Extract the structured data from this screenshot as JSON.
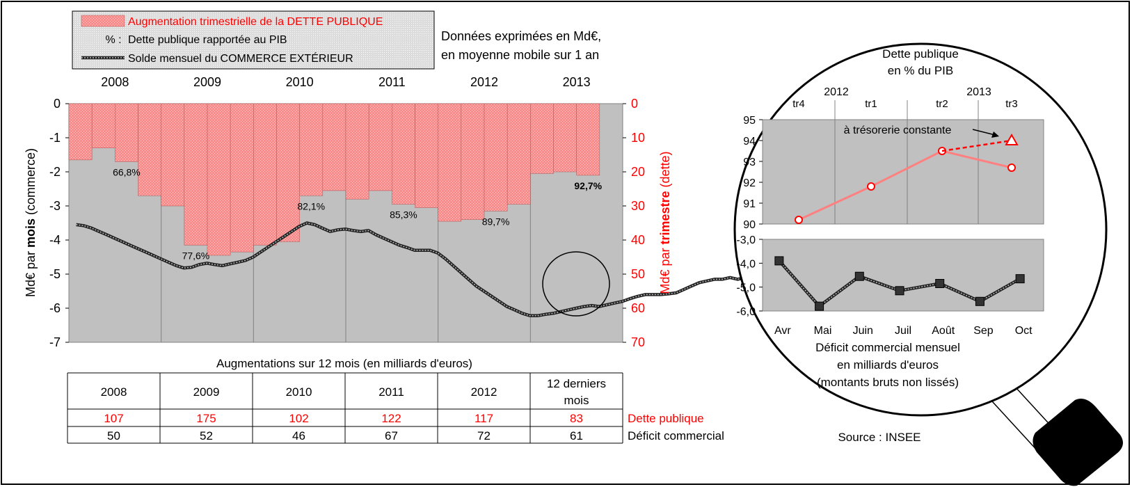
{
  "legend": {
    "items": [
      {
        "label": "Augmentation trimestrielle de la DETTE PUBLIQUE",
        "color": "#ff0000",
        "swatch": "bar"
      },
      {
        "label": "Dette publique rapportée au PIB",
        "color": "#000000",
        "swatch": "%  :"
      },
      {
        "label": "Solde mensuel du COMMERCE EXTÉRIEUR",
        "color": "#000000",
        "swatch": "line"
      }
    ]
  },
  "note": [
    "Données exprimées en Md€,",
    "en moyenne mobile sur 1 an"
  ],
  "source": "Source : INSEE",
  "colors": {
    "plot_bg": "#c0c0c0",
    "bar_fill": "#ff8080",
    "debt_red": "#ff0000",
    "line_dark": "#333333",
    "pink_line": "#ff8080"
  },
  "chart_data": [
    {
      "type": "bar",
      "id": "main",
      "years": [
        "2008",
        "2009",
        "2010",
        "2011",
        "2012",
        "2013"
      ],
      "ylabel_left_parts": [
        "Md€ par ",
        "mois",
        " (commerce)"
      ],
      "ylabel_right_parts": [
        "Md€ par ",
        "trimestre",
        " (dette)"
      ],
      "ylim_left": [
        -7,
        0
      ],
      "ylim_right": [
        0,
        70
      ],
      "left_ticks": [
        "0",
        "-1",
        "-2",
        "-3",
        "-4",
        "-5",
        "-6",
        "-7"
      ],
      "right_ticks": [
        "0",
        "10",
        "20",
        "30",
        "40",
        "50",
        "60",
        "70"
      ],
      "debt_quarterly": [
        16.5,
        13,
        17,
        27,
        30,
        41.5,
        44.5,
        43.5,
        41.5,
        40.5,
        27,
        25.5,
        28,
        25.5,
        29.5,
        30.5,
        34.5,
        34,
        31.5,
        29.5,
        20.5,
        20,
        21
      ],
      "ratio_labels": [
        {
          "q": 2,
          "text": "66,8%",
          "bold": false
        },
        {
          "q": 5,
          "text": "77,6%",
          "bold": false
        },
        {
          "q": 10,
          "text": "82,1%",
          "bold": false
        },
        {
          "q": 14,
          "text": "85,3%",
          "bold": false
        },
        {
          "q": 18,
          "text": "89,7%",
          "bold": false
        },
        {
          "q": 22,
          "text": "92,7%",
          "bold": true
        }
      ],
      "trade_monthly": [
        -3.55,
        -3.58,
        -3.65,
        -3.75,
        -3.85,
        -3.95,
        -4.05,
        -4.15,
        -4.25,
        -4.35,
        -4.45,
        -4.55,
        -4.65,
        -4.75,
        -4.82,
        -4.8,
        -4.72,
        -4.68,
        -4.72,
        -4.75,
        -4.7,
        -4.65,
        -4.6,
        -4.5,
        -4.35,
        -4.2,
        -4.05,
        -3.9,
        -3.75,
        -3.6,
        -3.5,
        -3.55,
        -3.65,
        -3.75,
        -3.7,
        -3.68,
        -3.72,
        -3.75,
        -3.72,
        -3.85,
        -3.95,
        -4.05,
        -4.15,
        -4.22,
        -4.3,
        -4.3,
        -4.3,
        -4.38,
        -4.55,
        -4.75,
        -4.95,
        -5.15,
        -5.35,
        -5.5,
        -5.65,
        -5.8,
        -5.95,
        -6.05,
        -6.15,
        -6.22,
        -6.22,
        -6.18,
        -6.15,
        -6.1,
        -6.05,
        -6.0,
        -5.95,
        -5.92,
        -5.95,
        -5.9,
        -5.85,
        -5.8,
        -5.72,
        -5.65,
        -5.6,
        -5.6,
        -5.6,
        -5.58,
        -5.55,
        -5.45,
        -5.35,
        -5.25,
        -5.2,
        -5.15,
        -5.15,
        -5.1,
        -5.15,
        -5.1,
        -5.12,
        -5.12
      ]
    },
    {
      "type": "line",
      "id": "inset-debt",
      "title": [
        "Dette publique",
        "en % du PIB"
      ],
      "quarters": [
        "tr4",
        "tr1",
        "tr2",
        "tr3"
      ],
      "years": [
        "2012",
        "2013"
      ],
      "ylim": [
        90,
        95
      ],
      "yticks": [
        "95",
        "94",
        "93",
        "92",
        "91",
        "90"
      ],
      "values": [
        90.2,
        91.8,
        93.5,
        92.7
      ],
      "projection": {
        "from": 93.5,
        "to": 94.0,
        "label": "à trésorerie constante"
      }
    },
    {
      "type": "line",
      "id": "inset-trade",
      "categories": [
        "Avr",
        "Mai",
        "Juin",
        "Juil",
        "Août",
        "Sep",
        "Oct"
      ],
      "ylim": [
        -6.0,
        -3.0
      ],
      "yticks": [
        "-3,0",
        "-4,0",
        "-5,0",
        "-6,0"
      ],
      "values": [
        -3.9,
        -5.8,
        -4.55,
        -5.15,
        -4.85,
        -5.6,
        -4.65
      ],
      "xlabel": [
        "Déficit commercial mensuel",
        "en milliards d'euros",
        "(montants bruts non lissés)"
      ]
    },
    {
      "type": "table",
      "id": "summary",
      "title": "Augmentations sur 12 mois (en milliards d'euros)",
      "columns": [
        "2008",
        "2009",
        "2010",
        "2011",
        "2012",
        "12 derniers mois"
      ],
      "rows": [
        {
          "label": "Dette publique",
          "color": "#ff0000",
          "values": [
            "107",
            "175",
            "102",
            "122",
            "117",
            "83"
          ]
        },
        {
          "label": "Déficit commercial",
          "color": "#000000",
          "values": [
            "50",
            "52",
            "46",
            "67",
            "72",
            "61"
          ]
        }
      ]
    }
  ]
}
